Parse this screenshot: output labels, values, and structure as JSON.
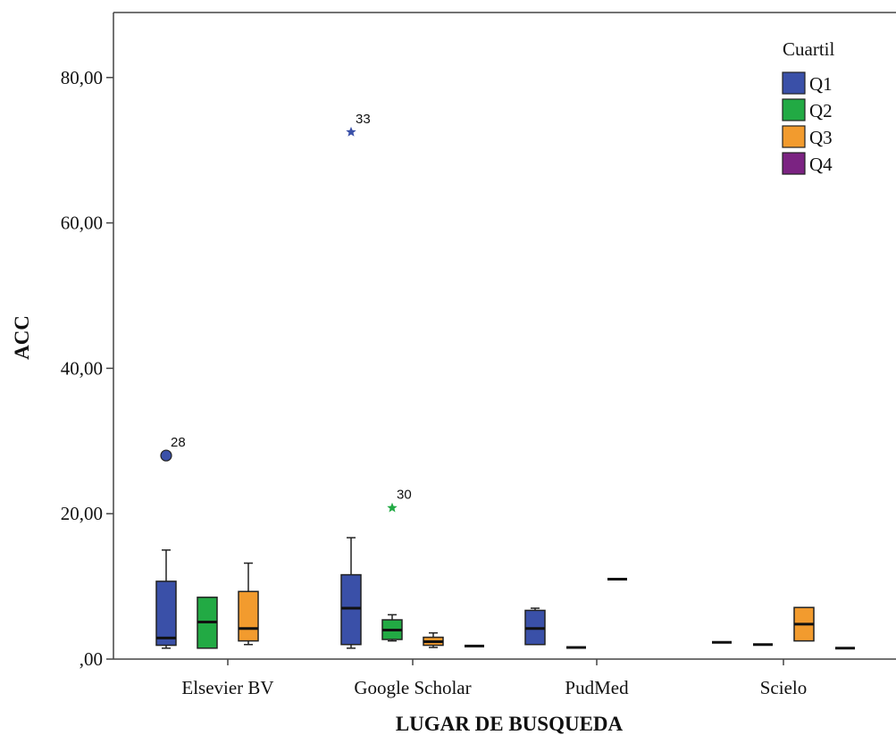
{
  "chart_data": {
    "type": "boxplot",
    "xlabel": "LUGAR DE BUSQUEDA",
    "ylabel": "ACC",
    "ylim": [
      0,
      88
    ],
    "y_ticks": [
      0,
      20,
      40,
      60,
      80
    ],
    "y_tick_labels": [
      ",00",
      "20,00",
      "40,00",
      "60,00",
      "80,00"
    ],
    "categories": [
      "Elsevier BV",
      "Google Scholar",
      "PudMed",
      "Scielo"
    ],
    "legend": {
      "title": "Cuartil",
      "position": "top-right",
      "items": [
        {
          "label": "Q1",
          "color": "#3a50a8"
        },
        {
          "label": "Q2",
          "color": "#22aa44"
        },
        {
          "label": "Q3",
          "color": "#f29b2e"
        },
        {
          "label": "Q4",
          "color": "#7b2382"
        }
      ]
    },
    "boxes": [
      {
        "category": "Elsevier BV",
        "group": "Q1",
        "whisker_low": 1.5,
        "q1": 1.9,
        "median": 2.9,
        "q3": 10.7,
        "whisker_high": 15.0
      },
      {
        "category": "Elsevier BV",
        "group": "Q2",
        "whisker_low": 1.5,
        "q1": 1.5,
        "median": 5.1,
        "q3": 8.5,
        "whisker_high": 8.5
      },
      {
        "category": "Elsevier BV",
        "group": "Q3",
        "whisker_low": 2.0,
        "q1": 2.5,
        "median": 4.2,
        "q3": 9.3,
        "whisker_high": 13.2
      },
      {
        "category": "Google Scholar",
        "group": "Q1",
        "whisker_low": 1.5,
        "q1": 2.0,
        "median": 7.0,
        "q3": 11.6,
        "whisker_high": 16.7
      },
      {
        "category": "Google Scholar",
        "group": "Q2",
        "whisker_low": 2.5,
        "q1": 2.7,
        "median": 4.0,
        "q3": 5.4,
        "whisker_high": 6.1
      },
      {
        "category": "Google Scholar",
        "group": "Q3",
        "whisker_low": 1.6,
        "q1": 1.9,
        "median": 2.4,
        "q3": 3.0,
        "whisker_high": 3.6
      },
      {
        "category": "Google Scholar",
        "group": "Q4",
        "whisker_low": 1.8,
        "q1": 1.8,
        "median": 1.8,
        "q3": 1.8,
        "whisker_high": 1.8
      },
      {
        "category": "PudMed",
        "group": "Q1",
        "whisker_low": 2.0,
        "q1": 2.0,
        "median": 4.2,
        "q3": 6.7,
        "whisker_high": 7.0
      },
      {
        "category": "PudMed",
        "group": "Q2",
        "whisker_low": 1.6,
        "q1": 1.6,
        "median": 1.6,
        "q3": 1.6,
        "whisker_high": 1.6
      },
      {
        "category": "PudMed",
        "group": "Q3",
        "whisker_low": 11.0,
        "q1": 11.0,
        "median": 11.0,
        "q3": 11.0,
        "whisker_high": 11.0
      },
      {
        "category": "Scielo",
        "group": "Q1",
        "whisker_low": 2.3,
        "q1": 2.3,
        "median": 2.3,
        "q3": 2.3,
        "whisker_high": 2.3
      },
      {
        "category": "Scielo",
        "group": "Q2",
        "whisker_low": 2.0,
        "q1": 2.0,
        "median": 2.0,
        "q3": 2.0,
        "whisker_high": 2.0
      },
      {
        "category": "Scielo",
        "group": "Q3",
        "whisker_low": 2.5,
        "q1": 2.5,
        "median": 4.8,
        "q3": 7.1,
        "whisker_high": 7.1
      },
      {
        "category": "Scielo",
        "group": "Q4",
        "whisker_low": 1.5,
        "q1": 1.5,
        "median": 1.5,
        "q3": 1.5,
        "whisker_high": 1.5
      }
    ],
    "outliers": [
      {
        "category": "Elsevier BV",
        "group": "Q1",
        "value": 28.0,
        "label": "28",
        "marker": "circle"
      },
      {
        "category": "Google Scholar",
        "group": "Q1",
        "value": 72.5,
        "label": "33",
        "marker": "star"
      },
      {
        "category": "Google Scholar",
        "group": "Q2",
        "value": 20.8,
        "label": "30",
        "marker": "star"
      }
    ]
  }
}
